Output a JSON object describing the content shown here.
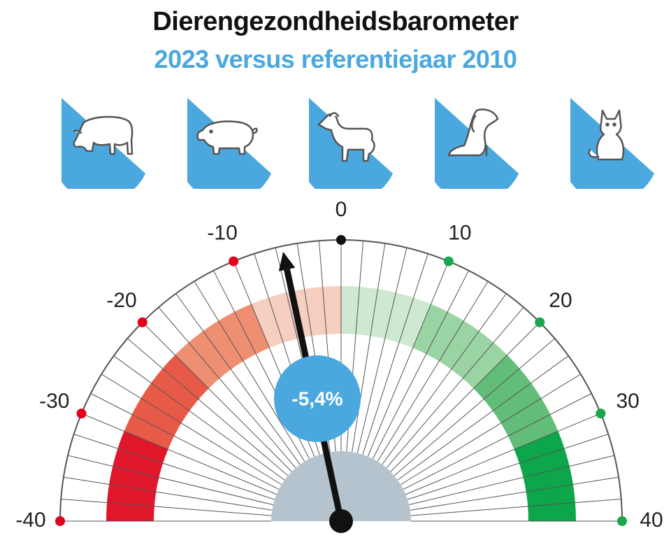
{
  "title": "Dierengezondheidsbarometer",
  "subtitle": "2023 versus referentiejaar 2010",
  "animals": [
    "cow-icon",
    "pig-icon",
    "horse-icon",
    "dog-icon",
    "cat-icon"
  ],
  "colors": {
    "title": "#111111",
    "accent": "#4aa8df",
    "hub": "#b4c3cd",
    "needle": "#111111",
    "negative_dot": "#e2001a",
    "positive_dot": "#1aa64a",
    "negative_bands": [
      "#f6cfc1",
      "#ee8f72",
      "#e85a48",
      "#e0162b"
    ],
    "positive_bands": [
      "#cfe8d1",
      "#9bd4a3",
      "#62bd78",
      "#0da64a"
    ]
  },
  "badge": "-5,4%",
  "chart_data": {
    "type": "gauge",
    "min": -40,
    "max": 40,
    "major_ticks": [
      -40,
      -30,
      -20,
      -10,
      0,
      10,
      20,
      30,
      40
    ],
    "tick_labels": [
      "-40",
      "-30",
      "-20",
      "-10",
      "0",
      "10",
      "20",
      "30",
      "40"
    ],
    "value": -5.4,
    "value_label": "-5,4%",
    "bands": [
      {
        "from": -40,
        "to": -30,
        "level": 4
      },
      {
        "from": -30,
        "to": -20,
        "level": 3
      },
      {
        "from": -20,
        "to": -10,
        "level": 2
      },
      {
        "from": -10,
        "to": 0,
        "level": 1
      },
      {
        "from": 0,
        "to": 10,
        "level": 1
      },
      {
        "from": 10,
        "to": 20,
        "level": 2
      },
      {
        "from": 20,
        "to": 30,
        "level": 3
      },
      {
        "from": 30,
        "to": 40,
        "level": 4
      }
    ]
  }
}
